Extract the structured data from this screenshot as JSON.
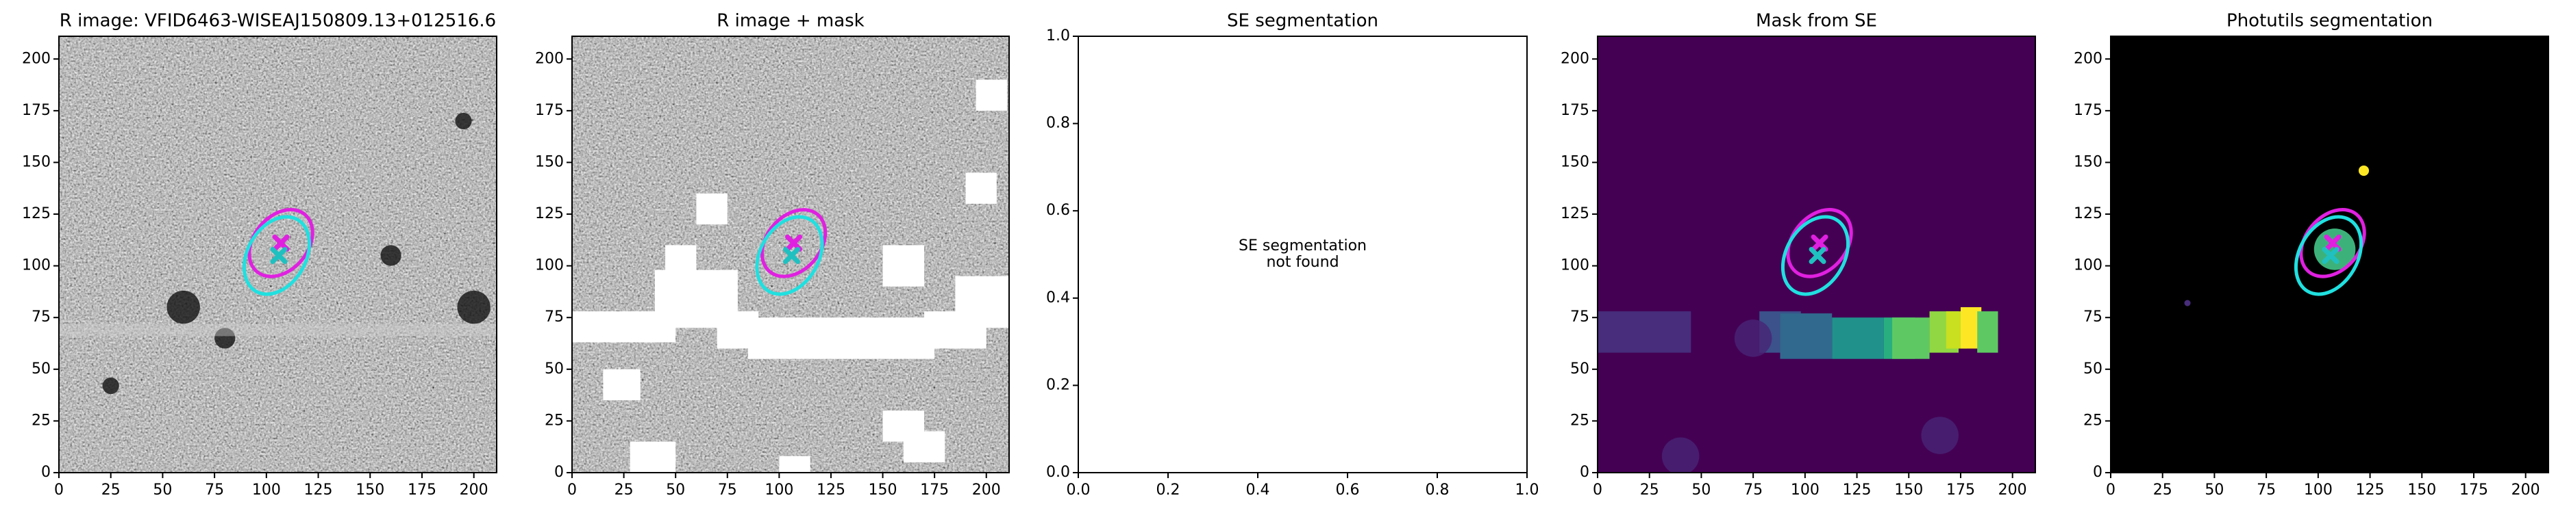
{
  "chart_data": [
    {
      "type": "image",
      "title": "R image: VFID6463-WISEAJ150809.13+012516.6",
      "cmap": "gray",
      "xlim": [
        0,
        211
      ],
      "ylim": [
        0,
        211
      ],
      "xticks": [
        0,
        25,
        50,
        75,
        100,
        125,
        150,
        175,
        200
      ],
      "yticks": [
        0,
        25,
        50,
        75,
        100,
        125,
        150,
        175,
        200
      ],
      "ellipses": [
        {
          "x": 107,
          "y": 111,
          "a": 18,
          "b": 13,
          "angle": 50,
          "color": "#e020e0"
        },
        {
          "x": 105,
          "y": 105,
          "a": 20,
          "b": 14,
          "angle": 60,
          "color": "#20e0e0"
        }
      ],
      "markers": [
        {
          "x": 107,
          "y": 111,
          "color": "#e020e0"
        },
        {
          "x": 106,
          "y": 105,
          "color": "#20c0c0"
        }
      ]
    },
    {
      "type": "image",
      "title": "R image + mask",
      "cmap": "gray",
      "xlim": [
        0,
        211
      ],
      "ylim": [
        0,
        211
      ],
      "xticks": [
        0,
        25,
        50,
        75,
        100,
        125,
        150,
        175,
        200
      ],
      "yticks": [
        0,
        25,
        50,
        75,
        100,
        125,
        150,
        175,
        200
      ],
      "ellipses": [
        {
          "x": 107,
          "y": 111,
          "a": 18,
          "b": 13,
          "angle": 50,
          "color": "#e020e0"
        },
        {
          "x": 105,
          "y": 105,
          "a": 20,
          "b": 14,
          "angle": 60,
          "color": "#20e0e0"
        }
      ],
      "markers": [
        {
          "x": 107,
          "y": 111,
          "color": "#e020e0"
        },
        {
          "x": 106,
          "y": 105,
          "color": "#20c0c0"
        }
      ]
    },
    {
      "type": "empty",
      "title": "SE segmentation",
      "annotation": [
        "SE segmentation",
        "not found"
      ],
      "xlim": [
        0,
        1
      ],
      "ylim": [
        0,
        1
      ],
      "xticks": [
        {
          "value": 0,
          "label": "0.0"
        },
        0.2,
        0.4,
        0.6,
        0.8,
        {
          "value": 1,
          "label": "1.0"
        }
      ],
      "yticks": [
        {
          "value": 0,
          "label": "0.0"
        },
        0.2,
        0.4,
        0.6,
        0.8,
        {
          "value": 1,
          "label": "1.0"
        }
      ]
    },
    {
      "type": "image",
      "title": "Mask from SE",
      "cmap": "viridis",
      "xlim": [
        0,
        211
      ],
      "ylim": [
        0,
        211
      ],
      "xticks": [
        0,
        25,
        50,
        75,
        100,
        125,
        150,
        175,
        200
      ],
      "yticks": [
        0,
        25,
        50,
        75,
        100,
        125,
        150,
        175,
        200
      ],
      "ellipses": [
        {
          "x": 107,
          "y": 111,
          "a": 18,
          "b": 13,
          "angle": 50,
          "color": "#e020e0"
        },
        {
          "x": 105,
          "y": 105,
          "a": 20,
          "b": 14,
          "angle": 60,
          "color": "#20e0e0"
        }
      ],
      "markers": [
        {
          "x": 107,
          "y": 111,
          "color": "#e020e0"
        },
        {
          "x": 106,
          "y": 105,
          "color": "#20c0c0"
        }
      ]
    },
    {
      "type": "image",
      "title": "Photutils segmentation",
      "cmap": "viridis",
      "xlim": [
        0,
        211
      ],
      "ylim": [
        0,
        211
      ],
      "xticks": [
        0,
        25,
        50,
        75,
        100,
        125,
        150,
        175,
        200
      ],
      "yticks": [
        0,
        25,
        50,
        75,
        100,
        125,
        150,
        175,
        200
      ],
      "ellipses": [
        {
          "x": 107,
          "y": 111,
          "a": 18,
          "b": 13,
          "angle": 50,
          "color": "#e020e0"
        },
        {
          "x": 105,
          "y": 105,
          "a": 20,
          "b": 14,
          "angle": 60,
          "color": "#20e0e0"
        }
      ],
      "markers": [
        {
          "x": 107,
          "y": 111,
          "color": "#e020e0"
        },
        {
          "x": 106,
          "y": 105,
          "color": "#20c0c0"
        }
      ]
    }
  ]
}
